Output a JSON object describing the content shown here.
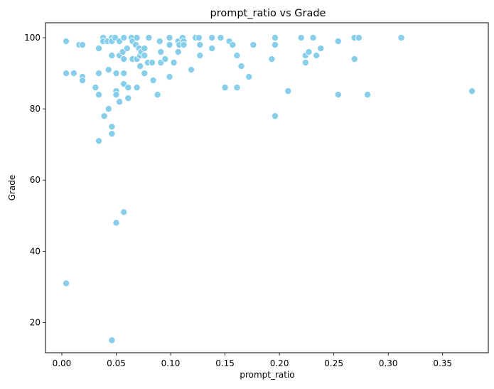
{
  "chart_data": {
    "type": "scatter",
    "title": "prompt_ratio vs Grade",
    "xlabel": "prompt_ratio",
    "ylabel": "Grade",
    "xlim": [
      -0.015,
      0.392
    ],
    "ylim": [
      11.5,
      104.2
    ],
    "xticks": [
      0.0,
      0.05,
      0.1,
      0.15,
      0.2,
      0.25,
      0.3,
      0.35
    ],
    "xtick_labels": [
      "0.00",
      "0.05",
      "0.10",
      "0.15",
      "0.20",
      "0.25",
      "0.30",
      "0.35"
    ],
    "yticks": [
      20,
      40,
      60,
      80,
      100
    ],
    "ytick_labels": [
      "20",
      "40",
      "60",
      "80",
      "100"
    ],
    "grid": false,
    "marker_color": "#87CEEB",
    "marker_edge_color": "#ffffff",
    "points": [
      {
        "x": 0.004,
        "y": 99
      },
      {
        "x": 0.004,
        "y": 90
      },
      {
        "x": 0.004,
        "y": 31
      },
      {
        "x": 0.011,
        "y": 90
      },
      {
        "x": 0.016,
        "y": 98
      },
      {
        "x": 0.019,
        "y": 98
      },
      {
        "x": 0.019,
        "y": 89
      },
      {
        "x": 0.019,
        "y": 88
      },
      {
        "x": 0.031,
        "y": 86
      },
      {
        "x": 0.034,
        "y": 97
      },
      {
        "x": 0.034,
        "y": 90
      },
      {
        "x": 0.034,
        "y": 84
      },
      {
        "x": 0.034,
        "y": 71
      },
      {
        "x": 0.038,
        "y": 100
      },
      {
        "x": 0.038,
        "y": 99
      },
      {
        "x": 0.039,
        "y": 78
      },
      {
        "x": 0.042,
        "y": 99
      },
      {
        "x": 0.043,
        "y": 91
      },
      {
        "x": 0.043,
        "y": 80
      },
      {
        "x": 0.046,
        "y": 100
      },
      {
        "x": 0.046,
        "y": 99
      },
      {
        "x": 0.046,
        "y": 95
      },
      {
        "x": 0.046,
        "y": 75
      },
      {
        "x": 0.046,
        "y": 73
      },
      {
        "x": 0.046,
        "y": 15
      },
      {
        "x": 0.049,
        "y": 100
      },
      {
        "x": 0.05,
        "y": 90
      },
      {
        "x": 0.05,
        "y": 85
      },
      {
        "x": 0.05,
        "y": 84
      },
      {
        "x": 0.05,
        "y": 48
      },
      {
        "x": 0.053,
        "y": 99
      },
      {
        "x": 0.053,
        "y": 95
      },
      {
        "x": 0.053,
        "y": 82
      },
      {
        "x": 0.056,
        "y": 96
      },
      {
        "x": 0.057,
        "y": 100
      },
      {
        "x": 0.057,
        "y": 94
      },
      {
        "x": 0.057,
        "y": 90
      },
      {
        "x": 0.057,
        "y": 87
      },
      {
        "x": 0.057,
        "y": 51
      },
      {
        "x": 0.06,
        "y": 97
      },
      {
        "x": 0.061,
        "y": 86
      },
      {
        "x": 0.061,
        "y": 83
      },
      {
        "x": 0.064,
        "y": 100
      },
      {
        "x": 0.065,
        "y": 99
      },
      {
        "x": 0.065,
        "y": 94
      },
      {
        "x": 0.068,
        "y": 98
      },
      {
        "x": 0.069,
        "y": 100
      },
      {
        "x": 0.069,
        "y": 94
      },
      {
        "x": 0.069,
        "y": 86
      },
      {
        "x": 0.071,
        "y": 97
      },
      {
        "x": 0.072,
        "y": 95
      },
      {
        "x": 0.072,
        "y": 92
      },
      {
        "x": 0.073,
        "y": 96
      },
      {
        "x": 0.076,
        "y": 97
      },
      {
        "x": 0.076,
        "y": 95
      },
      {
        "x": 0.076,
        "y": 90
      },
      {
        "x": 0.079,
        "y": 93
      },
      {
        "x": 0.08,
        "y": 100
      },
      {
        "x": 0.083,
        "y": 93
      },
      {
        "x": 0.084,
        "y": 88
      },
      {
        "x": 0.088,
        "y": 84
      },
      {
        "x": 0.09,
        "y": 99
      },
      {
        "x": 0.091,
        "y": 96
      },
      {
        "x": 0.091,
        "y": 93
      },
      {
        "x": 0.095,
        "y": 94
      },
      {
        "x": 0.099,
        "y": 100
      },
      {
        "x": 0.099,
        "y": 98
      },
      {
        "x": 0.099,
        "y": 89
      },
      {
        "x": 0.103,
        "y": 93
      },
      {
        "x": 0.107,
        "y": 99
      },
      {
        "x": 0.107,
        "y": 96
      },
      {
        "x": 0.108,
        "y": 98
      },
      {
        "x": 0.111,
        "y": 100
      },
      {
        "x": 0.112,
        "y": 99
      },
      {
        "x": 0.112,
        "y": 98
      },
      {
        "x": 0.119,
        "y": 91
      },
      {
        "x": 0.123,
        "y": 100
      },
      {
        "x": 0.126,
        "y": 100
      },
      {
        "x": 0.127,
        "y": 98
      },
      {
        "x": 0.127,
        "y": 95
      },
      {
        "x": 0.138,
        "y": 100
      },
      {
        "x": 0.138,
        "y": 97
      },
      {
        "x": 0.146,
        "y": 100
      },
      {
        "x": 0.15,
        "y": 86
      },
      {
        "x": 0.154,
        "y": 99
      },
      {
        "x": 0.157,
        "y": 98
      },
      {
        "x": 0.161,
        "y": 95
      },
      {
        "x": 0.161,
        "y": 86
      },
      {
        "x": 0.165,
        "y": 92
      },
      {
        "x": 0.172,
        "y": 89
      },
      {
        "x": 0.176,
        "y": 98
      },
      {
        "x": 0.193,
        "y": 94
      },
      {
        "x": 0.196,
        "y": 100
      },
      {
        "x": 0.196,
        "y": 98
      },
      {
        "x": 0.196,
        "y": 78
      },
      {
        "x": 0.208,
        "y": 85
      },
      {
        "x": 0.22,
        "y": 100
      },
      {
        "x": 0.224,
        "y": 95
      },
      {
        "x": 0.224,
        "y": 93
      },
      {
        "x": 0.227,
        "y": 96
      },
      {
        "x": 0.231,
        "y": 100
      },
      {
        "x": 0.234,
        "y": 95
      },
      {
        "x": 0.238,
        "y": 97
      },
      {
        "x": 0.254,
        "y": 99
      },
      {
        "x": 0.254,
        "y": 84
      },
      {
        "x": 0.269,
        "y": 100
      },
      {
        "x": 0.269,
        "y": 94
      },
      {
        "x": 0.273,
        "y": 100
      },
      {
        "x": 0.281,
        "y": 84
      },
      {
        "x": 0.312,
        "y": 100
      },
      {
        "x": 0.377,
        "y": 85
      }
    ]
  }
}
